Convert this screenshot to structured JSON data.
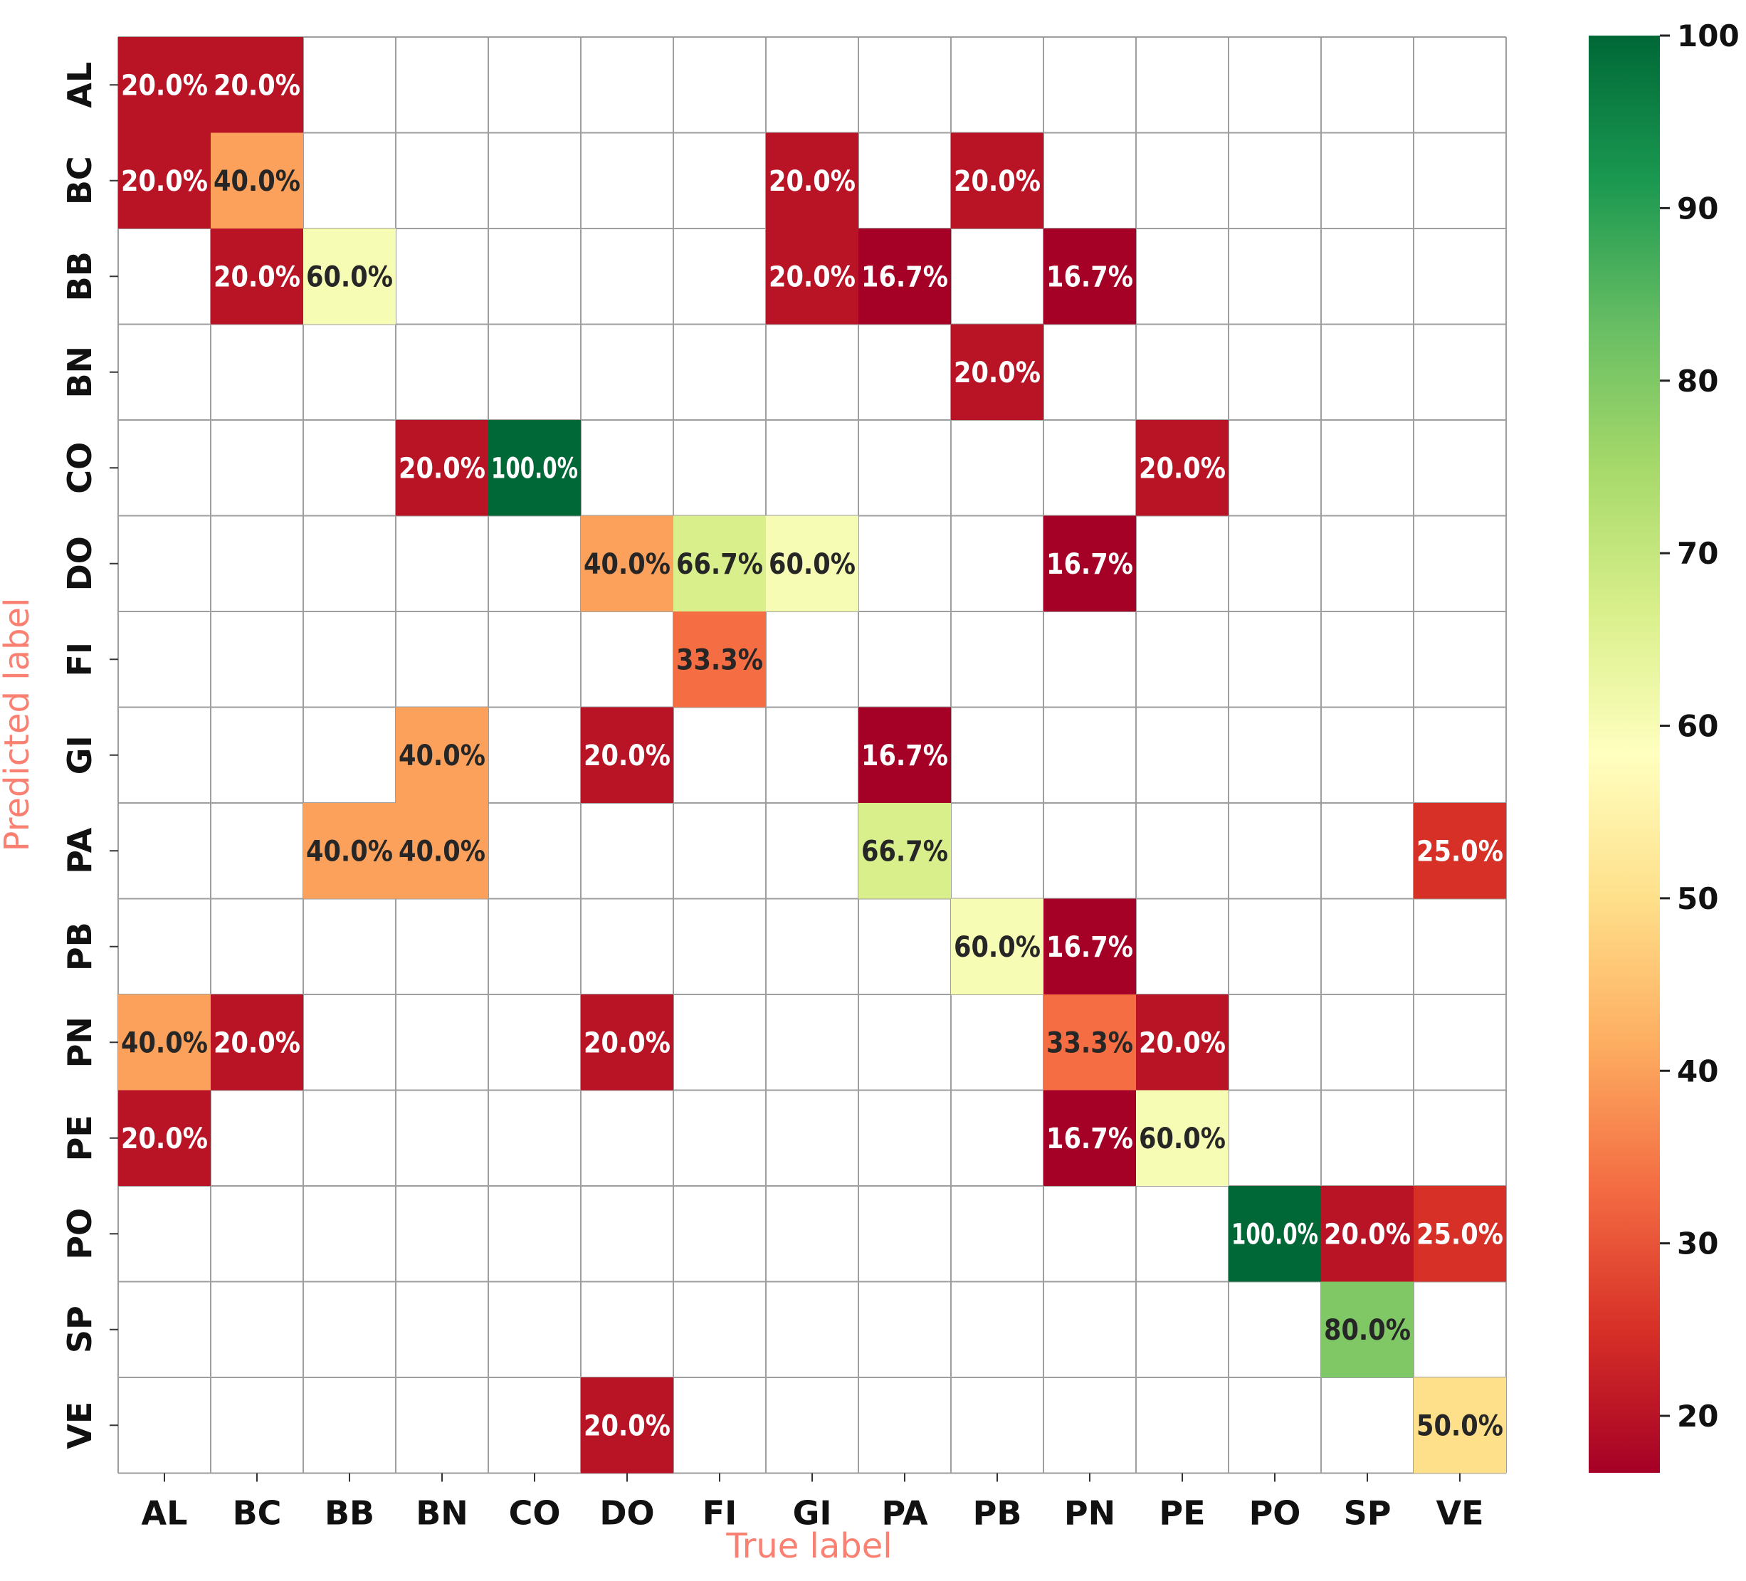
{
  "chart_data": {
    "type": "heatmap",
    "title": "",
    "xlabel": "True label",
    "ylabel": "Predicted label",
    "axis_title_color": "#fa8072",
    "x_categories": [
      "AL",
      "BC",
      "BB",
      "BN",
      "CO",
      "DO",
      "FI",
      "GI",
      "PA",
      "PB",
      "PN",
      "PE",
      "PO",
      "SP",
      "VE"
    ],
    "y_categories": [
      "AL",
      "BC",
      "BB",
      "BN",
      "CO",
      "DO",
      "FI",
      "GI",
      "PA",
      "PB",
      "PN",
      "PE",
      "PO",
      "SP",
      "VE"
    ],
    "value_unit": "%",
    "cells": [
      {
        "row": "AL",
        "col": "AL",
        "value": 20.0,
        "label": "20.0%"
      },
      {
        "row": "AL",
        "col": "BC",
        "value": 20.0,
        "label": "20.0%"
      },
      {
        "row": "BC",
        "col": "AL",
        "value": 20.0,
        "label": "20.0%"
      },
      {
        "row": "BC",
        "col": "BC",
        "value": 40.0,
        "label": "40.0%"
      },
      {
        "row": "BC",
        "col": "GI",
        "value": 20.0,
        "label": "20.0%"
      },
      {
        "row": "BC",
        "col": "PB",
        "value": 20.0,
        "label": "20.0%"
      },
      {
        "row": "BB",
        "col": "BC",
        "value": 20.0,
        "label": "20.0%"
      },
      {
        "row": "BB",
        "col": "BB",
        "value": 60.0,
        "label": "60.0%"
      },
      {
        "row": "BB",
        "col": "GI",
        "value": 20.0,
        "label": "20.0%"
      },
      {
        "row": "BB",
        "col": "PA",
        "value": 16.7,
        "label": "16.7%"
      },
      {
        "row": "BB",
        "col": "PN",
        "value": 16.7,
        "label": "16.7%"
      },
      {
        "row": "BN",
        "col": "PB",
        "value": 20.0,
        "label": "20.0%"
      },
      {
        "row": "CO",
        "col": "BN",
        "value": 20.0,
        "label": "20.0%"
      },
      {
        "row": "CO",
        "col": "CO",
        "value": 100.0,
        "label": "100.0%"
      },
      {
        "row": "CO",
        "col": "PE",
        "value": 20.0,
        "label": "20.0%"
      },
      {
        "row": "DO",
        "col": "DO",
        "value": 40.0,
        "label": "40.0%"
      },
      {
        "row": "DO",
        "col": "FI",
        "value": 66.7,
        "label": "66.7%"
      },
      {
        "row": "DO",
        "col": "GI",
        "value": 60.0,
        "label": "60.0%"
      },
      {
        "row": "DO",
        "col": "PN",
        "value": 16.7,
        "label": "16.7%"
      },
      {
        "row": "FI",
        "col": "FI",
        "value": 33.3,
        "label": "33.3%"
      },
      {
        "row": "GI",
        "col": "BN",
        "value": 40.0,
        "label": "40.0%"
      },
      {
        "row": "GI",
        "col": "DO",
        "value": 20.0,
        "label": "20.0%"
      },
      {
        "row": "GI",
        "col": "PA",
        "value": 16.7,
        "label": "16.7%"
      },
      {
        "row": "PA",
        "col": "BB",
        "value": 40.0,
        "label": "40.0%"
      },
      {
        "row": "PA",
        "col": "BN",
        "value": 40.0,
        "label": "40.0%"
      },
      {
        "row": "PA",
        "col": "PA",
        "value": 66.7,
        "label": "66.7%"
      },
      {
        "row": "PA",
        "col": "VE",
        "value": 25.0,
        "label": "25.0%"
      },
      {
        "row": "PB",
        "col": "PB",
        "value": 60.0,
        "label": "60.0%"
      },
      {
        "row": "PB",
        "col": "PN",
        "value": 16.7,
        "label": "16.7%"
      },
      {
        "row": "PN",
        "col": "AL",
        "value": 40.0,
        "label": "40.0%"
      },
      {
        "row": "PN",
        "col": "BC",
        "value": 20.0,
        "label": "20.0%"
      },
      {
        "row": "PN",
        "col": "DO",
        "value": 20.0,
        "label": "20.0%"
      },
      {
        "row": "PN",
        "col": "PN",
        "value": 33.3,
        "label": "33.3%"
      },
      {
        "row": "PN",
        "col": "PE",
        "value": 20.0,
        "label": "20.0%"
      },
      {
        "row": "PE",
        "col": "AL",
        "value": 20.0,
        "label": "20.0%"
      },
      {
        "row": "PE",
        "col": "PN",
        "value": 16.7,
        "label": "16.7%"
      },
      {
        "row": "PE",
        "col": "PE",
        "value": 60.0,
        "label": "60.0%"
      },
      {
        "row": "PO",
        "col": "PO",
        "value": 100.0,
        "label": "100.0%"
      },
      {
        "row": "PO",
        "col": "SP",
        "value": 20.0,
        "label": "20.0%"
      },
      {
        "row": "PO",
        "col": "VE",
        "value": 25.0,
        "label": "25.0%"
      },
      {
        "row": "SP",
        "col": "SP",
        "value": 80.0,
        "label": "80.0%"
      },
      {
        "row": "VE",
        "col": "DO",
        "value": 20.0,
        "label": "20.0%"
      },
      {
        "row": "VE",
        "col": "VE",
        "value": 50.0,
        "label": "50.0%"
      }
    ],
    "colorbar": {
      "colormap": "RdYlGn",
      "vmin": 16.7,
      "vmax": 100,
      "ticks": [
        20,
        30,
        40,
        50,
        60,
        70,
        80,
        90,
        100
      ],
      "colors": [
        "#a50026",
        "#d73027",
        "#f46d43",
        "#fdae61",
        "#fee08b",
        "#ffffbf",
        "#d9ef8b",
        "#a6d96a",
        "#66bd63",
        "#1a9850",
        "#006837"
      ]
    },
    "grid": true,
    "grid_color": "#9e9e9e"
  }
}
